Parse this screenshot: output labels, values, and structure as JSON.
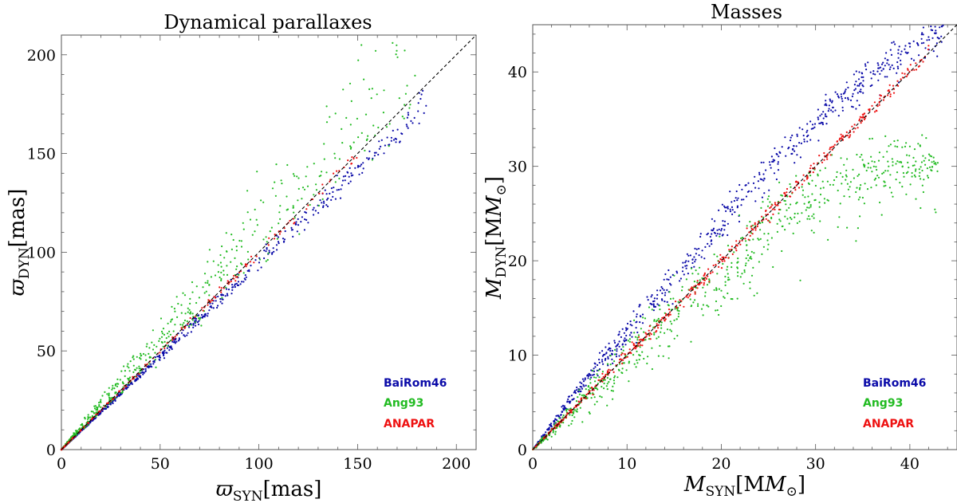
{
  "colors": {
    "blue": "#0a0aa8",
    "green": "#22bb22",
    "red": "#ee1111",
    "axis": "#555555",
    "diag": "#000000"
  },
  "chart_data": [
    {
      "type": "scatter",
      "title": "Dynamical parallaxes",
      "xlabel_symbol": "ϖ",
      "xlabel_sub": "SYN",
      "xlabel_unit": "[mas]",
      "ylabel_symbol": "ϖ",
      "ylabel_sub": "DYN",
      "ylabel_unit": "[mas]",
      "xlim": [
        0,
        210
      ],
      "ylim": [
        0,
        210
      ],
      "xticks": [
        0,
        50,
        100,
        150,
        200
      ],
      "yticks": [
        0,
        50,
        100,
        150,
        200
      ],
      "diagonal": true,
      "legend": {
        "placement": "bottom-right",
        "entries": [
          {
            "name": "BaiRom46",
            "color": "#0a0aa8"
          },
          {
            "name": "Ang93",
            "color": "#22bb22"
          },
          {
            "name": "ANAPAR",
            "color": "#ee1111"
          }
        ]
      },
      "series": [
        {
          "name": "BaiRom46",
          "color": "#0a0aa8",
          "n": 700,
          "x_range": [
            0,
            185
          ],
          "ratio": [
            0.93,
            0.98
          ],
          "scatter": 0.012
        },
        {
          "name": "Ang93",
          "color": "#22bb22",
          "n": 650,
          "x_range": [
            0,
            180
          ],
          "ratio": [
            1.01,
            1.3
          ],
          "scatter": 0.05
        },
        {
          "name": "ANAPAR",
          "color": "#ee1111",
          "n": 220,
          "x_range": [
            0,
            150
          ],
          "ratio": [
            0.99,
            1.01
          ],
          "scatter": 0.006
        }
      ]
    },
    {
      "type": "scatter",
      "title": "Masses",
      "xlabel_symbol": "M",
      "xlabel_sub": "SYN",
      "xlabel_unit": "[M",
      "ylabel_symbol": "M",
      "ylabel_sub": "DYN",
      "ylabel_unit": "[M",
      "unit_suffix": "⊙",
      "xlim": [
        0,
        45
      ],
      "ylim": [
        0,
        45
      ],
      "xticks": [
        0,
        10,
        20,
        30,
        40
      ],
      "yticks": [
        0,
        10,
        20,
        30,
        40
      ],
      "diagonal": true,
      "legend": {
        "placement": "bottom-right",
        "entries": [
          {
            "name": "BaiRom46",
            "color": "#0a0aa8"
          },
          {
            "name": "Ang93",
            "color": "#22bb22"
          },
          {
            "name": "ANAPAR",
            "color": "#ee1111"
          }
        ]
      },
      "series": [
        {
          "name": "BaiRom46",
          "color": "#0a0aa8",
          "n": 650,
          "curve": [
            [
              0,
              0
            ],
            [
              5,
              6.5
            ],
            [
              10,
              12.5
            ],
            [
              15,
              18
            ],
            [
              20,
              24
            ],
            [
              25,
              29.5
            ],
            [
              30,
              34.5
            ],
            [
              35,
              39
            ],
            [
              40,
              42.5
            ],
            [
              44,
              44.5
            ]
          ],
          "scatter": 0.9
        },
        {
          "name": "Ang93",
          "color": "#22bb22",
          "n": 750,
          "curve": [
            [
              0,
              0
            ],
            [
              5,
              5
            ],
            [
              10,
              9.5
            ],
            [
              15,
              14.5
            ],
            [
              20,
              19.5
            ],
            [
              25,
              25
            ],
            [
              30,
              28.5
            ],
            [
              35,
              30.5
            ],
            [
              40,
              31.2
            ],
            [
              43,
              31.3
            ]
          ],
          "scatter": 1.6
        },
        {
          "name": "ANAPAR",
          "color": "#ee1111",
          "n": 450,
          "curve": [
            [
              0,
              0
            ],
            [
              10,
              10
            ],
            [
              20,
              20
            ],
            [
              30,
              30
            ],
            [
              36,
              36
            ],
            [
              42,
              42
            ]
          ],
          "scatter": 0.35
        }
      ]
    }
  ]
}
